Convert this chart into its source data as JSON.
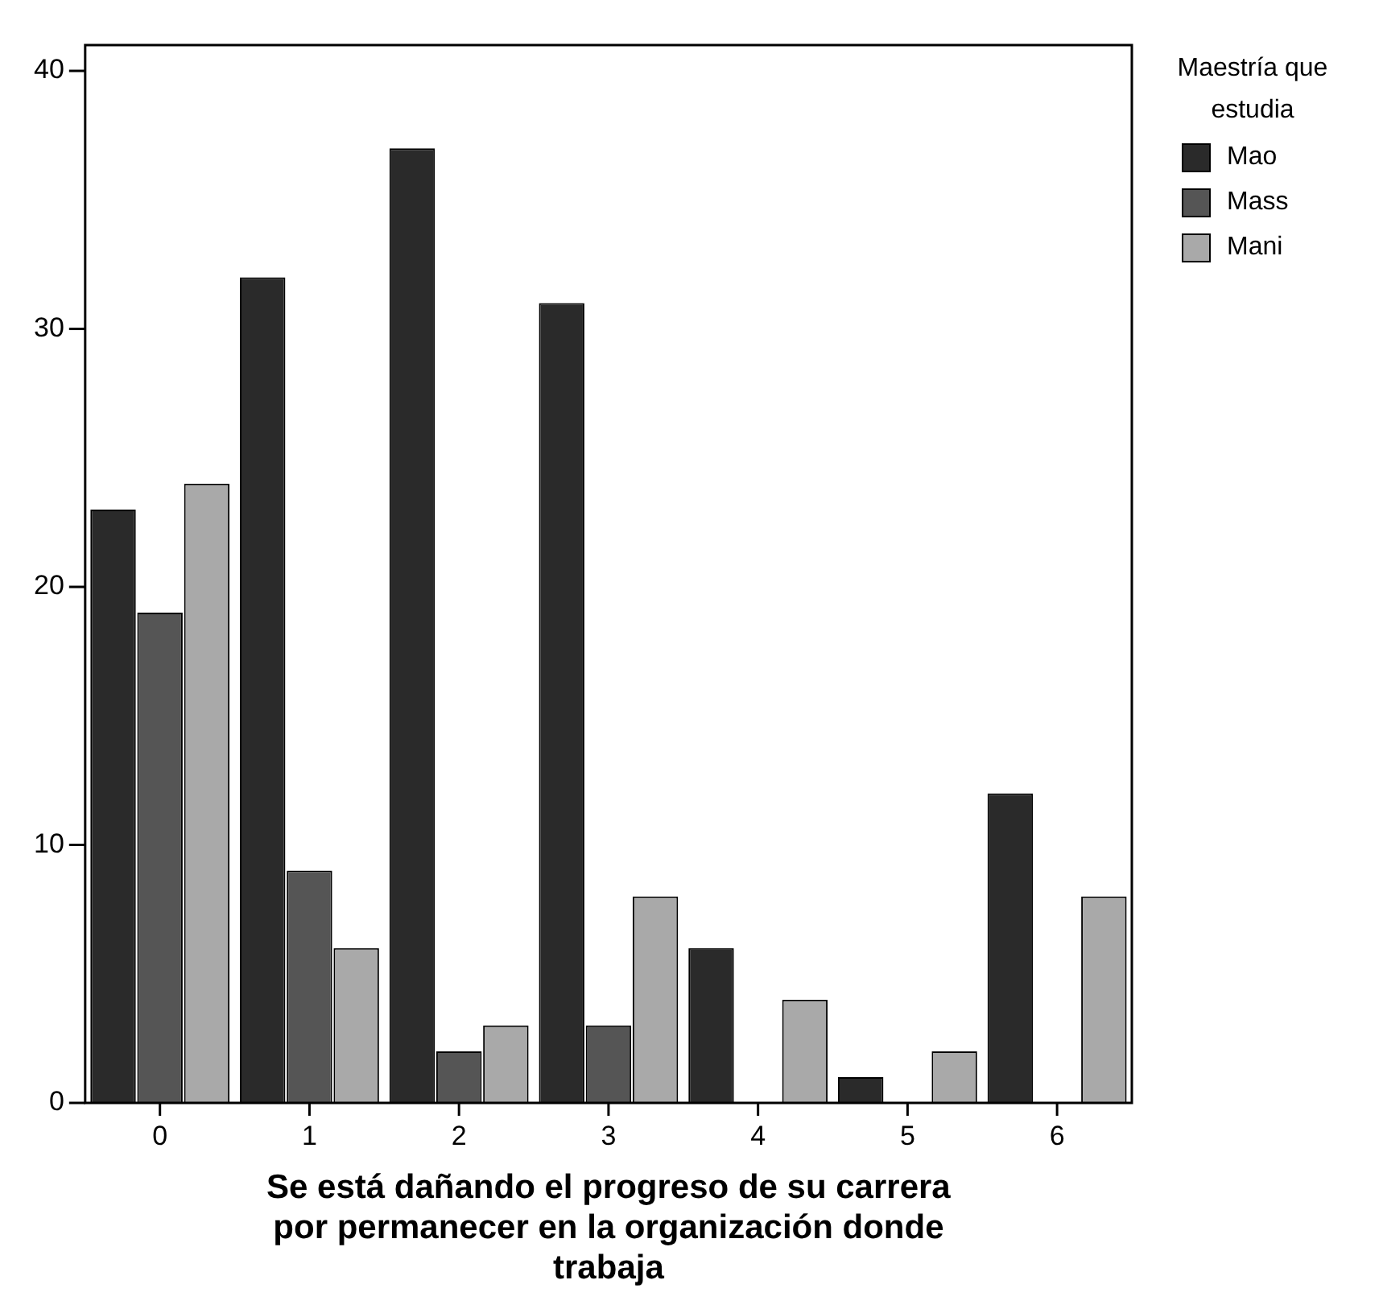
{
  "chart_data": {
    "type": "bar",
    "xlabel": "Se está dañando el progreso de su carrera por permanecer en la organización donde trabaja",
    "legend_title": "Maestría que estudia",
    "categories": [
      "0",
      "1",
      "2",
      "3",
      "4",
      "5",
      "6"
    ],
    "series": [
      {
        "name": "Mao",
        "color": "#2a2a2a",
        "values": [
          23,
          32,
          37,
          31,
          6,
          1,
          12
        ]
      },
      {
        "name": "Mass",
        "color": "#555555",
        "values": [
          19,
          9,
          2,
          3,
          0,
          0,
          0
        ]
      },
      {
        "name": "Mani",
        "color": "#a9a9a9",
        "values": [
          24,
          6,
          3,
          8,
          4,
          2,
          8
        ]
      }
    ],
    "ylim": [
      0,
      41
    ],
    "yticks": [
      0,
      10,
      20,
      30,
      40
    ],
    "grid": false,
    "legend": "top right"
  }
}
